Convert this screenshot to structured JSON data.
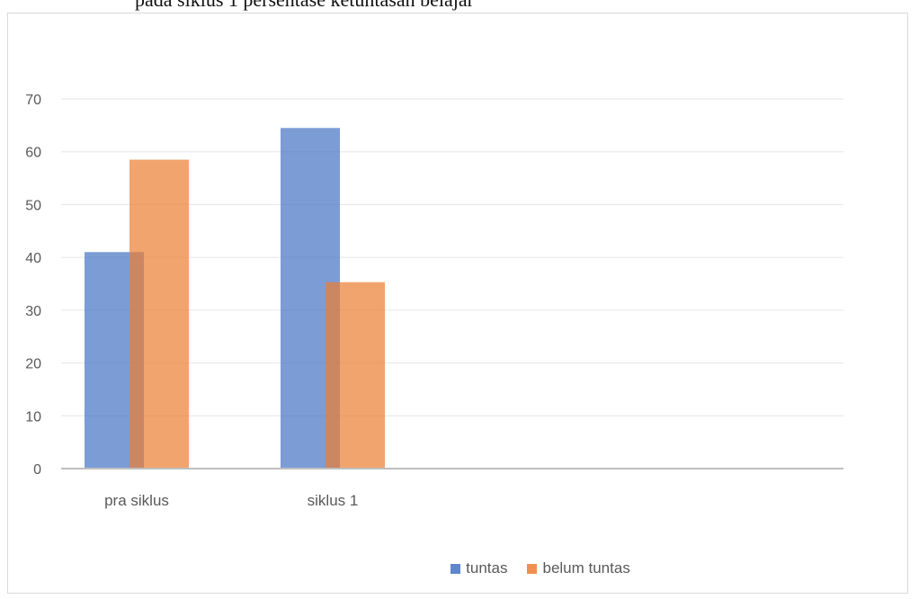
{
  "top_text": "pada siklus 1 persentase ketuntasan belajar",
  "chart_data": {
    "type": "bar",
    "title": "",
    "xlabel": "",
    "ylabel": "",
    "categories": [
      "pra siklus",
      "siklus 1"
    ],
    "series": [
      {
        "name": "tuntas",
        "values": [
          41,
          64.5
        ],
        "color": "#4472C4"
      },
      {
        "name": "belum tuntas",
        "values": [
          58.5,
          35.3
        ],
        "color": "#ED7D31"
      }
    ],
    "ylim": [
      0,
      70
    ],
    "yticks": [
      0,
      10,
      20,
      30,
      40,
      50,
      60,
      70
    ],
    "grid": true,
    "legend": "bottom"
  }
}
